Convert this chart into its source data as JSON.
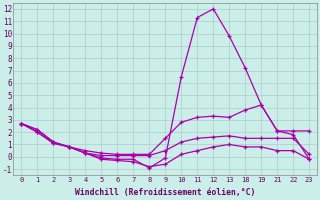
{
  "xlabel": "Windchill (Refroidissement éolien,°C)",
  "background_color": "#cceee8",
  "grid_color": "#aacccc",
  "line_color": "#aa00aa",
  "xlim": [
    -0.5,
    23.5
  ],
  "ylim": [
    -1.5,
    12.5
  ],
  "yticks": [
    -1,
    0,
    1,
    2,
    3,
    4,
    5,
    6,
    7,
    8,
    9,
    10,
    11,
    12
  ],
  "xtick_positions": [
    0,
    1,
    2,
    3,
    4,
    5,
    6,
    7,
    8,
    9,
    10,
    11,
    12,
    13,
    18,
    19,
    21,
    22,
    23
  ],
  "xtick_labels": [
    "0",
    "1",
    "2",
    "3",
    "4",
    "5",
    "6",
    "7",
    "8",
    "9",
    "10",
    "11",
    "12",
    "13",
    "18",
    "19",
    "21",
    "22",
    "23"
  ],
  "line1_y": [
    2.7,
    2.2,
    1.2,
    0.8,
    0.3,
    -0.1,
    -0.2,
    -0.2,
    -0.9,
    -0.1,
    6.5,
    11.3,
    12.0,
    9.8,
    7.2,
    4.2,
    2.1,
    1.8,
    -0.2
  ],
  "line2_y": [
    2.7,
    2.2,
    1.2,
    0.8,
    0.5,
    0.3,
    0.2,
    0.2,
    0.2,
    1.5,
    2.8,
    3.2,
    3.3,
    3.2,
    3.8,
    4.2,
    2.1,
    2.1,
    2.1
  ],
  "line3_y": [
    2.7,
    2.0,
    1.1,
    0.8,
    0.3,
    0.1,
    0.1,
    0.1,
    0.1,
    0.5,
    1.2,
    1.5,
    1.6,
    1.7,
    1.5,
    1.5,
    1.5,
    1.5,
    0.2
  ],
  "line4_y": [
    2.7,
    2.0,
    1.1,
    0.8,
    0.3,
    -0.2,
    -0.3,
    -0.4,
    -0.8,
    -0.6,
    0.2,
    0.5,
    0.8,
    1.0,
    0.8,
    0.8,
    0.5,
    0.5,
    -0.2
  ]
}
